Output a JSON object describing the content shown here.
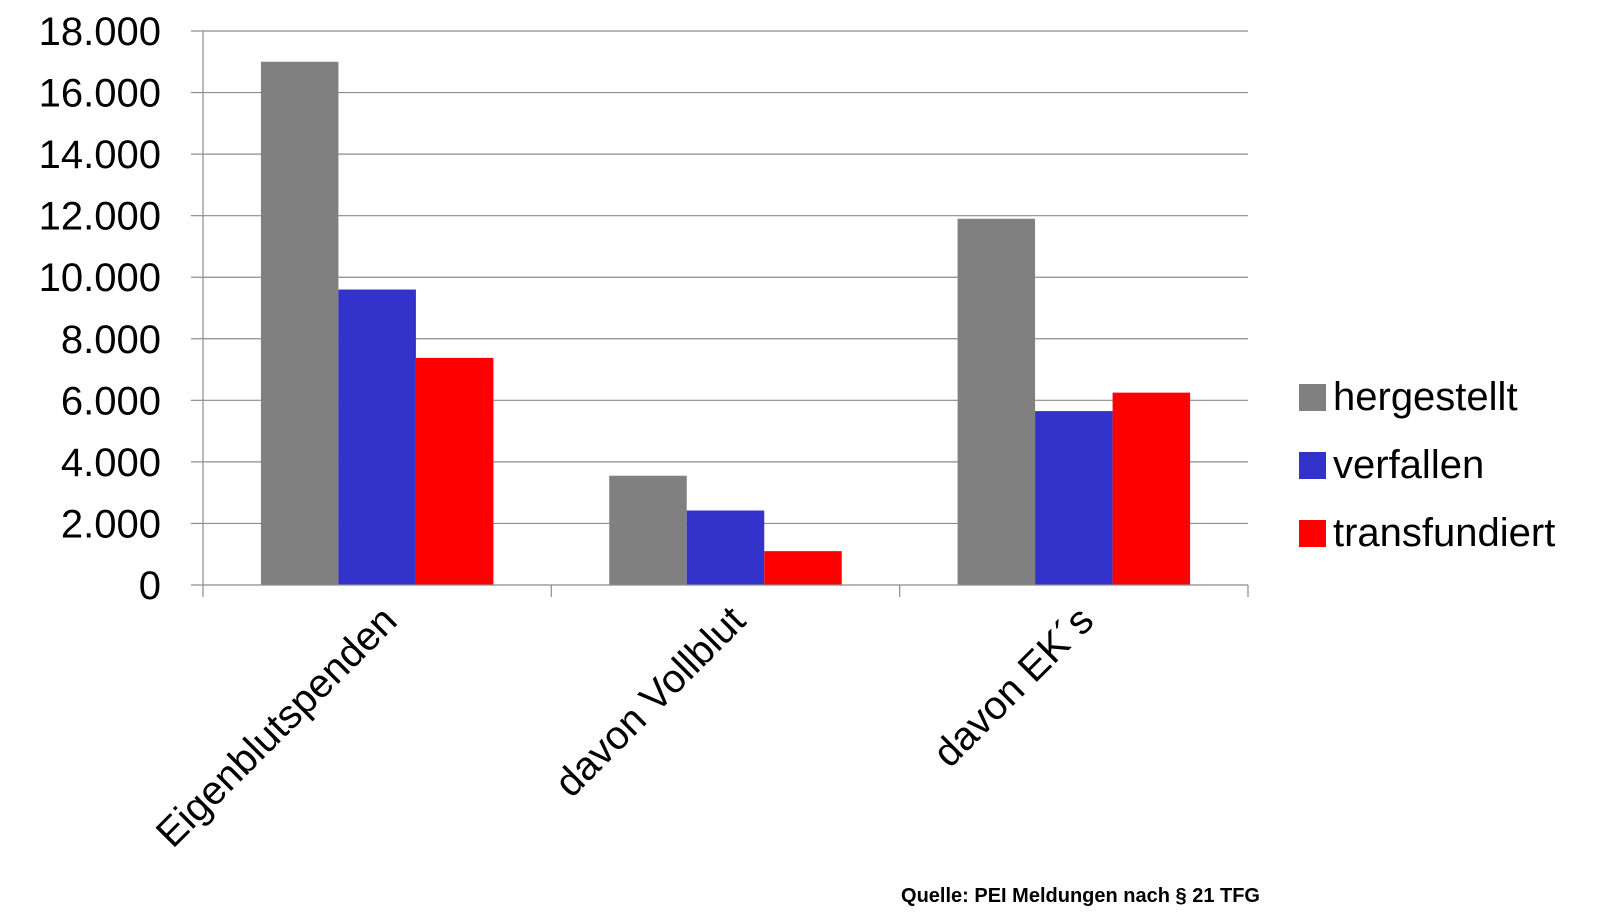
{
  "chart_data": {
    "type": "bar",
    "categories": [
      "Eigenblutspenden",
      "davon Vollblut",
      "davon EK´s"
    ],
    "series": [
      {
        "name": "hergestellt",
        "color": "#808080",
        "values": [
          17000,
          3550,
          11900
        ]
      },
      {
        "name": "verfallen",
        "color": "#3333cc",
        "values": [
          9600,
          2420,
          5650
        ]
      },
      {
        "name": "transfundiert",
        "color": "#ff0000",
        "values": [
          7380,
          1100,
          6250
        ]
      }
    ],
    "ylim": [
      0,
      18000
    ],
    "yticks": [
      0,
      2000,
      4000,
      6000,
      8000,
      10000,
      12000,
      14000,
      16000,
      18000
    ],
    "ytick_labels": [
      "0",
      "2.000",
      "4.000",
      "6.000",
      "8.000",
      "10.000",
      "12.000",
      "14.000",
      "16.000",
      "18.000"
    ],
    "grid": true,
    "legend_position": "right",
    "source": "Quelle: PEI Meldungen nach  § 21 TFG"
  }
}
